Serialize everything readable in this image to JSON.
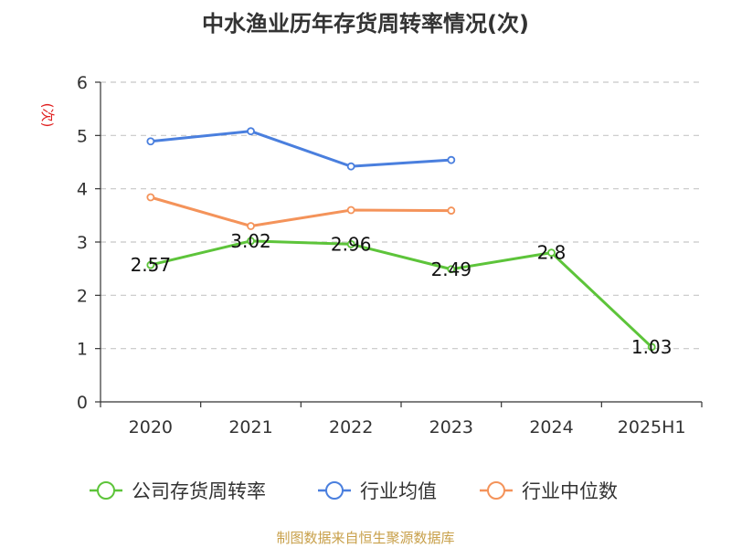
{
  "chart_data": {
    "type": "line",
    "title": "中水渔业历年存货周转率情况(次)",
    "ylabel": "(次)",
    "xlabel": "",
    "categories": [
      "2020",
      "2021",
      "2022",
      "2023",
      "2024",
      "2025H1"
    ],
    "ylim": [
      0,
      6
    ],
    "yticks": [
      0,
      1,
      2,
      3,
      4,
      5,
      6
    ],
    "grid": true,
    "legend_position": "bottom",
    "series": [
      {
        "name": "公司存货周转率",
        "color": "#5dc43a",
        "values": [
          2.57,
          3.02,
          2.96,
          2.49,
          2.8,
          1.03
        ],
        "labels": [
          "2.57",
          "3.02",
          "2.96",
          "2.49",
          "2.8",
          "1.03"
        ]
      },
      {
        "name": "行业均值",
        "color": "#4a7fde",
        "values": [
          4.89,
          5.08,
          4.42,
          4.54,
          null,
          null
        ]
      },
      {
        "name": "行业中位数",
        "color": "#f4935a",
        "values": [
          3.84,
          3.3,
          3.6,
          3.59,
          null,
          null
        ]
      }
    ]
  },
  "source": "制图数据来自恒生聚源数据库"
}
